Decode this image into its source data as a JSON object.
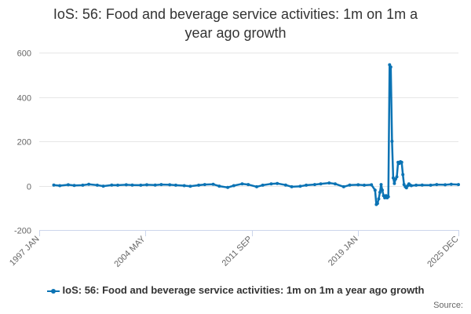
{
  "colors": {
    "series": "#0b73b4",
    "grid": "#e6e6e6",
    "axis": "#ccd6eb"
  },
  "chart_data": {
    "type": "line",
    "title_lines": [
      "IoS: 56: Food and beverage service activities: 1m on 1m a",
      "year ago growth"
    ],
    "title": "IoS: 56: Food and beverage service activities: 1m on 1m a year ago growth",
    "xlabel": "",
    "ylabel": "",
    "ylim": [
      -200,
      600
    ],
    "yticks": [
      -200,
      0,
      200,
      400,
      600
    ],
    "x_range": [
      "1997 JAN",
      "2025 DEC"
    ],
    "xticks": [
      "1997 JAN",
      "2004 MAY",
      "2011 SEP",
      "2019 JAN",
      "2025 DEC"
    ],
    "grid": true,
    "legend_position": "bottom",
    "series": [
      {
        "name": "IoS: 56: Food and beverage service activities: 1m on 1m a year ago growth",
        "points": [
          [
            "1998 JAN",
            3
          ],
          [
            "1998 JUN",
            0
          ],
          [
            "1999 JAN",
            4
          ],
          [
            "1999 JUN",
            1
          ],
          [
            "2000 JAN",
            2
          ],
          [
            "2000 JUN",
            6
          ],
          [
            "2001 JAN",
            2
          ],
          [
            "2001 JUN",
            -2
          ],
          [
            "2002 JAN",
            3
          ],
          [
            "2002 JUN",
            2
          ],
          [
            "2003 JAN",
            4
          ],
          [
            "2003 JUN",
            3
          ],
          [
            "2004 JAN",
            2
          ],
          [
            "2004 JUN",
            4
          ],
          [
            "2005 JAN",
            3
          ],
          [
            "2005 JUN",
            5
          ],
          [
            "2006 JAN",
            4
          ],
          [
            "2006 JUN",
            2
          ],
          [
            "2007 JAN",
            0
          ],
          [
            "2007 JUN",
            -3
          ],
          [
            "2008 JAN",
            2
          ],
          [
            "2008 JUN",
            5
          ],
          [
            "2009 JAN",
            6
          ],
          [
            "2009 JUN",
            -2
          ],
          [
            "2010 JAN",
            -8
          ],
          [
            "2010 JUN",
            0
          ],
          [
            "2011 JAN",
            8
          ],
          [
            "2011 JUN",
            5
          ],
          [
            "2012 JAN",
            -5
          ],
          [
            "2012 JUN",
            2
          ],
          [
            "2013 JAN",
            8
          ],
          [
            "2013 JUN",
            10
          ],
          [
            "2014 JAN",
            3
          ],
          [
            "2014 JUN",
            -5
          ],
          [
            "2015 JAN",
            -3
          ],
          [
            "2015 JUN",
            2
          ],
          [
            "2016 JAN",
            5
          ],
          [
            "2016 JUN",
            8
          ],
          [
            "2017 JAN",
            12
          ],
          [
            "2017 JUN",
            8
          ],
          [
            "2018 JAN",
            -5
          ],
          [
            "2018 JUN",
            3
          ],
          [
            "2019 JAN",
            4
          ],
          [
            "2019 JUN",
            2
          ],
          [
            "2019 DEC",
            4
          ],
          [
            "2020 MAR",
            -20
          ],
          [
            "2020 APR",
            -85
          ],
          [
            "2020 MAY",
            -80
          ],
          [
            "2020 JUN",
            -60
          ],
          [
            "2020 JUL",
            -30
          ],
          [
            "2020 AUG",
            5
          ],
          [
            "2020 SEP",
            -20
          ],
          [
            "2020 OCT",
            -45
          ],
          [
            "2020 NOV",
            -55
          ],
          [
            "2020 DEC",
            -45
          ],
          [
            "2021 JAN",
            -55
          ],
          [
            "2021 FEB",
            -50
          ],
          [
            "2021 MAR",
            545
          ],
          [
            "2021 APR",
            535
          ],
          [
            "2021 MAY",
            200
          ],
          [
            "2021 JUN",
            35
          ],
          [
            "2021 JUL",
            10
          ],
          [
            "2021 AUG",
            30
          ],
          [
            "2021 SEP",
            40
          ],
          [
            "2021 OCT",
            105
          ],
          [
            "2021 NOV",
            100
          ],
          [
            "2021 DEC",
            108
          ],
          [
            "2022 JAN",
            105
          ],
          [
            "2022 FEB",
            50
          ],
          [
            "2022 MAR",
            5
          ],
          [
            "2022 APR",
            -5
          ],
          [
            "2022 MAY",
            -10
          ],
          [
            "2022 JUN",
            0
          ],
          [
            "2022 JUL",
            8
          ],
          [
            "2022 AUG",
            3
          ],
          [
            "2022 SEP",
            0
          ],
          [
            "2023 JAN",
            2
          ],
          [
            "2023 JUN",
            3
          ],
          [
            "2024 JAN",
            2
          ],
          [
            "2024 JUN",
            5
          ],
          [
            "2025 JAN",
            4
          ],
          [
            "2025 JUN",
            6
          ],
          [
            "2025 DEC",
            5
          ]
        ]
      }
    ]
  },
  "legend": {
    "label": "IoS: 56: Food and beverage service activities: 1m on 1m a year ago growth"
  },
  "credits": {
    "text": "Source:"
  }
}
